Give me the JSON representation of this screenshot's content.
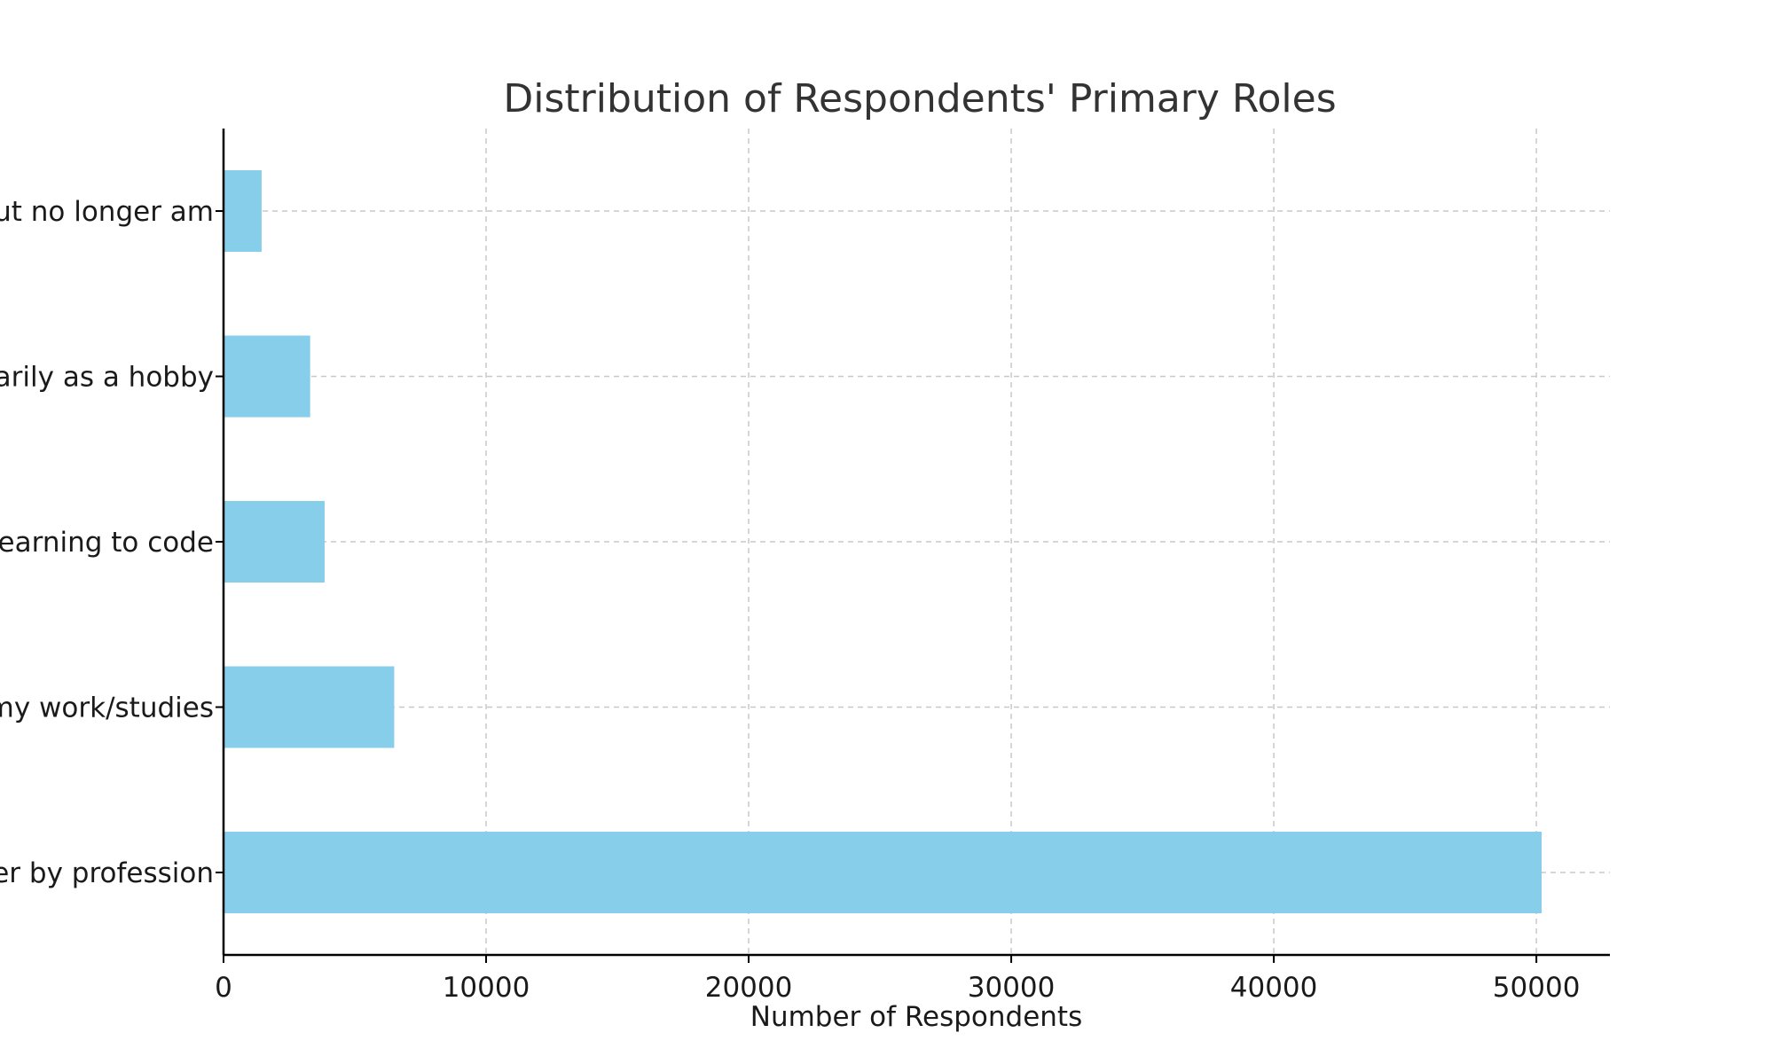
{
  "chart_data": {
    "type": "bar",
    "orientation": "horizontal",
    "title": "Distribution of Respondents' Primary Roles",
    "xlabel": "Number of Respondents",
    "ylabel": "",
    "categories": [
      "I am a developer by profession",
      "I code primarily as part of my work/studies",
      "I am learning to code",
      "I code primarily as a hobby",
      "I used to be a developer by profession, but no longer am"
    ],
    "values": [
      50200,
      6500,
      3850,
      3300,
      1450
    ],
    "xticks": [
      "0",
      "10000",
      "20000",
      "30000",
      "40000",
      "50000"
    ],
    "xlim": [
      0,
      52800
    ],
    "grid": true,
    "colors": {
      "bar": "#87ceeb"
    }
  }
}
